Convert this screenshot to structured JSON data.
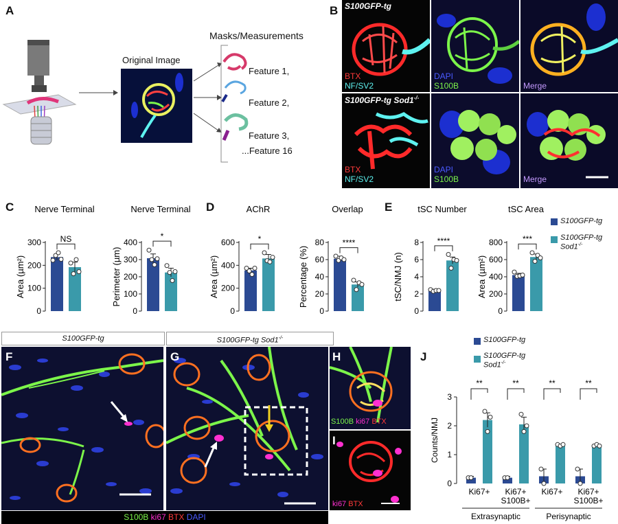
{
  "panels": {
    "A": "A",
    "B": "B",
    "C": "C",
    "D": "D",
    "E": "E",
    "F": "F",
    "G": "G",
    "H": "H",
    "I": "I",
    "J": "J"
  },
  "colors": {
    "s100_tg": "#2b4a93",
    "s100_sod": "#3a9aaa",
    "green": "#7cf54a",
    "red": "#ff2a2a",
    "cyan": "#5ef2f0",
    "blue": "#2e3fc4",
    "magenta": "#ff30d0",
    "purple": "#c49aff"
  },
  "panelA": {
    "original_image": "Original Image",
    "masks_title": "Masks/Measurements",
    "features": [
      "Feature 1,",
      "Feature 2,",
      "Feature 3,",
      "...Feature 16"
    ]
  },
  "panelB": {
    "row1_genotype": "S100GFP-tg",
    "row2_genotype_a": "S100GFP-tg ",
    "row2_genotype_b": "Sod1",
    "row2_genotype_sup": "-/-",
    "r1c1": [
      "BTX",
      "NF/SV2"
    ],
    "r1c2": [
      "DAPI",
      "S100B"
    ],
    "r1c3": [
      "Merge"
    ],
    "r2c1": [
      "BTX",
      "NF/SV2"
    ],
    "r2c2": [
      "DAPI",
      "S100B"
    ],
    "r2c3": [
      "Merge"
    ]
  },
  "legend": {
    "s100_tg": "S100GFP-tg",
    "s100_sod_a": "S100GFP-tg",
    "s100_sod_b": "Sod1",
    "s100_sod_sup": "-/-"
  },
  "panelFG": {
    "F_title": "S100GFP-tg",
    "G_title_a": "S100GFP-tg ",
    "G_title_b": "Sod1",
    "G_title_sup": "-/-",
    "H_labels": [
      "S100B",
      "ki67",
      "BTX"
    ],
    "I_labels": [
      "ki67",
      "BTX"
    ],
    "bottom_labels": [
      "S100B",
      "ki67",
      "BTX",
      "DAPI"
    ]
  },
  "chart_data": [
    {
      "id": "C1",
      "type": "bar",
      "title": "Nerve Terminal",
      "ylabel": "Area (µm²)",
      "ylim": [
        0,
        300
      ],
      "yticks": [
        0,
        100,
        200,
        300
      ],
      "categories": [
        "S100GFP-tg",
        "S100GFP-tg Sod1-/-"
      ],
      "values": [
        236,
        192
      ],
      "errors": [
        14,
        22
      ],
      "points": [
        [
          222,
          243,
          255,
          226
        ],
        [
          210,
          163,
          225,
          172
        ]
      ],
      "sig": "NS"
    },
    {
      "id": "C2",
      "type": "bar",
      "title": "Nerve Terminal",
      "ylabel": "Perimeter (µm)",
      "ylim": [
        0,
        400
      ],
      "yticks": [
        0,
        100,
        200,
        300,
        400
      ],
      "categories": [
        "S100GFP-tg",
        "S100GFP-tg Sod1-/-"
      ],
      "values": [
        308,
        225
      ],
      "errors": [
        25,
        25
      ],
      "points": [
        [
          355,
          300,
          270,
          305
        ],
        [
          265,
          225,
          178,
          230
        ]
      ],
      "sig": "*"
    },
    {
      "id": "D1",
      "type": "bar",
      "title": "AChR",
      "ylabel": "Area (µm²)",
      "ylim": [
        0,
        600
      ],
      "yticks": [
        0,
        200,
        400,
        600
      ],
      "categories": [
        "S100GFP-tg",
        "S100GFP-tg Sod1-/-"
      ],
      "values": [
        355,
        460
      ],
      "errors": [
        20,
        35
      ],
      "points": [
        [
          375,
          350,
          320,
          375
        ],
        [
          510,
          440,
          430,
          470
        ]
      ],
      "sig": "*"
    },
    {
      "id": "D2",
      "type": "bar",
      "title": "Overlap",
      "ylabel": "Percentage (%)",
      "ylim": [
        0,
        80
      ],
      "yticks": [
        0,
        20,
        40,
        60,
        80
      ],
      "categories": [
        "S100GFP-tg",
        "S100GFP-tg Sod1-/-"
      ],
      "values": [
        61,
        31
      ],
      "errors": [
        3,
        3
      ],
      "points": [
        [
          64,
          59,
          62,
          60
        ],
        [
          36,
          25,
          33,
          31
        ]
      ],
      "sig": "****"
    },
    {
      "id": "E1",
      "type": "bar",
      "title": "tSC Number",
      "ylabel": "tSC/NMJ (n)",
      "ylim": [
        0,
        8
      ],
      "yticks": [
        0,
        2,
        4,
        6,
        8
      ],
      "categories": [
        "S100GFP-tg",
        "S100GFP-tg Sod1-/-"
      ],
      "values": [
        2.4,
        5.9
      ],
      "errors": [
        0.15,
        0.4
      ],
      "points": [
        [
          2.5,
          2.3,
          2.4,
          2.4
        ],
        [
          6.6,
          5.0,
          6.0,
          5.9
        ]
      ],
      "sig": "****"
    },
    {
      "id": "E2",
      "type": "bar",
      "title": "tSC Area",
      "ylabel": "Area (µm²)",
      "ylim": [
        0,
        800
      ],
      "yticks": [
        0,
        200,
        400,
        600,
        800
      ],
      "categories": [
        "S100GFP-tg",
        "S100GFP-tg Sod1-/-"
      ],
      "values": [
        420,
        630
      ],
      "errors": [
        20,
        35
      ],
      "points": [
        [
          455,
          405,
          410,
          420
        ],
        [
          680,
          580,
          650,
          620
        ]
      ],
      "sig": "***"
    },
    {
      "id": "J",
      "type": "bar",
      "title": "",
      "ylabel": "Counts/NMJ",
      "ylim": [
        0,
        3
      ],
      "yticks": [
        0,
        1,
        2,
        3
      ],
      "categories": [
        "Ki67+",
        "Ki67+\nS100B+",
        "Ki67+",
        "Ki67+\nS100B+"
      ],
      "groups": [
        "Extrasynaptic",
        "Perisynaptic"
      ],
      "series": [
        {
          "name": "S100GFP-tg",
          "values": [
            0.2,
            0.2,
            0.25,
            0.25
          ],
          "errors": [
            0.05,
            0.05,
            0.25,
            0.25
          ],
          "points": [
            [
              0.2,
              0.2
            ],
            [
              0.2,
              0.2
            ],
            [
              0.5,
              0.0
            ],
            [
              0.5,
              0.0
            ]
          ]
        },
        {
          "name": "S100GFP-tg Sod1-/-",
          "values": [
            2.2,
            2.05,
            1.33,
            1.32
          ],
          "errors": [
            0.25,
            0.25,
            0.03,
            0.04
          ],
          "points": [
            [
              2.5,
              1.8,
              2.3
            ],
            [
              2.4,
              1.8,
              2.0
            ],
            [
              1.35,
              1.3,
              1.35
            ],
            [
              1.3,
              1.35,
              1.3
            ]
          ]
        }
      ],
      "sig": [
        "**",
        "**",
        "**",
        "**"
      ]
    }
  ]
}
